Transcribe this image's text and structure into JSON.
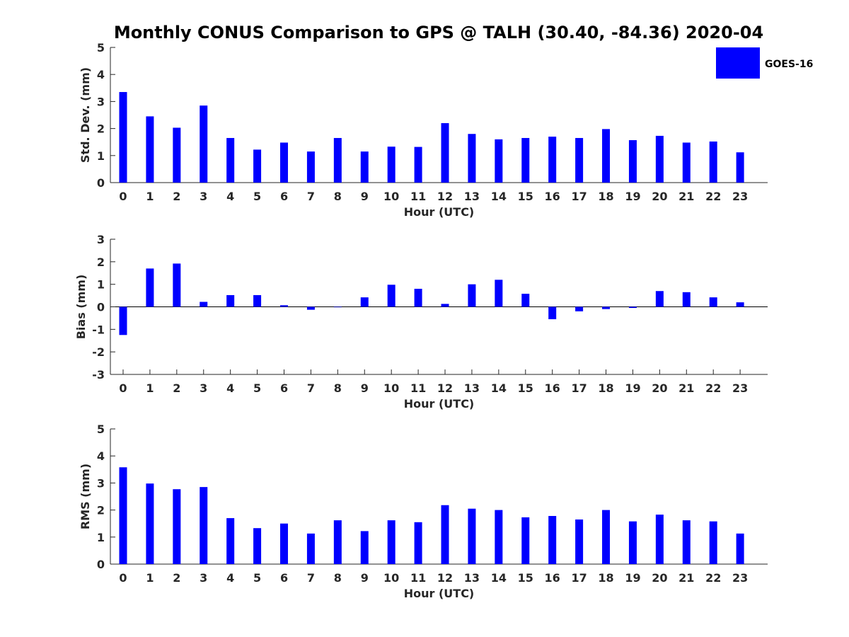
{
  "chart_data": {
    "title": "Monthly CONUS Comparison to GPS @ TALH (30.40, -84.36) 2020-04",
    "legend": {
      "label": "GOES-16",
      "color": "#0000ff",
      "placement": "top-right"
    },
    "bar_color": "#0000ff",
    "panels": [
      {
        "type": "bar",
        "xlabel": "Hour (UTC)",
        "ylabel": "Std. Dev. (mm)",
        "ylim": [
          0,
          5
        ],
        "yticks": [
          0,
          1,
          2,
          3,
          4,
          5
        ],
        "categories": [
          "0",
          "1",
          "2",
          "3",
          "4",
          "5",
          "6",
          "7",
          "8",
          "9",
          "10",
          "11",
          "12",
          "13",
          "14",
          "15",
          "16",
          "17",
          "18",
          "19",
          "20",
          "21",
          "22",
          "23"
        ],
        "series": [
          {
            "name": "GOES-16",
            "values": [
              3.35,
              2.45,
              2.03,
              2.85,
              1.65,
              1.22,
              1.48,
              1.15,
              1.65,
              1.15,
              1.33,
              1.32,
              2.2,
              1.8,
              1.6,
              1.65,
              1.7,
              1.65,
              1.98,
              1.57,
              1.73,
              1.48,
              1.52,
              1.12
            ]
          }
        ]
      },
      {
        "type": "bar",
        "xlabel": "Hour (UTC)",
        "ylabel": "Bias (mm)",
        "ylim": [
          -3,
          3
        ],
        "yticks": [
          -3,
          -2,
          -1,
          0,
          1,
          2,
          3
        ],
        "categories": [
          "0",
          "1",
          "2",
          "3",
          "4",
          "5",
          "6",
          "7",
          "8",
          "9",
          "10",
          "11",
          "12",
          "13",
          "14",
          "15",
          "16",
          "17",
          "18",
          "19",
          "20",
          "21",
          "22",
          "23"
        ],
        "series": [
          {
            "name": "GOES-16",
            "values": [
              -1.25,
              1.7,
              1.92,
              0.22,
              0.52,
              0.52,
              0.07,
              -0.13,
              -0.02,
              0.42,
              0.98,
              0.8,
              0.13,
              1.0,
              1.2,
              0.58,
              -0.55,
              -0.2,
              -0.1,
              -0.05,
              0.7,
              0.65,
              0.42,
              0.2
            ]
          }
        ]
      },
      {
        "type": "bar",
        "xlabel": "Hour (UTC)",
        "ylabel": "RMS (mm)",
        "ylim": [
          0,
          5
        ],
        "yticks": [
          0,
          1,
          2,
          3,
          4,
          5
        ],
        "categories": [
          "0",
          "1",
          "2",
          "3",
          "4",
          "5",
          "6",
          "7",
          "8",
          "9",
          "10",
          "11",
          "12",
          "13",
          "14",
          "15",
          "16",
          "17",
          "18",
          "19",
          "20",
          "21",
          "22",
          "23"
        ],
        "series": [
          {
            "name": "GOES-16",
            "values": [
              3.58,
              2.98,
              2.77,
              2.85,
              1.7,
              1.33,
              1.5,
              1.13,
              1.62,
              1.22,
              1.62,
              1.55,
              2.18,
              2.05,
              2.0,
              1.73,
              1.78,
              1.65,
              2.0,
              1.58,
              1.83,
              1.62,
              1.58,
              1.13
            ]
          }
        ]
      }
    ]
  }
}
